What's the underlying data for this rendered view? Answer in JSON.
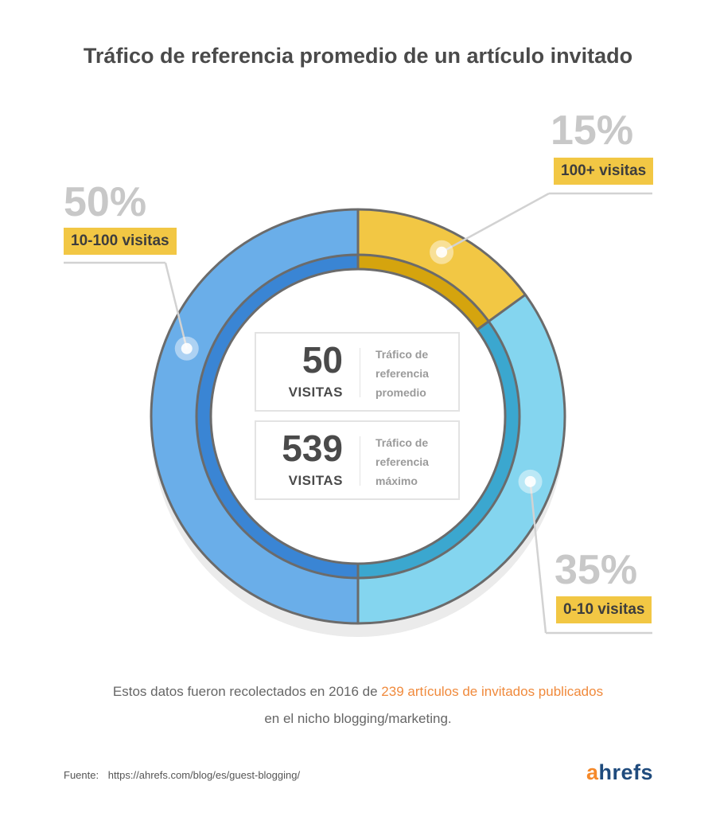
{
  "chart_data": {
    "type": "pie",
    "title": "Tráfico de referencia promedio de un artículo invitado",
    "slices": [
      {
        "label": "10-100 visitas",
        "value": 50,
        "pct_label": "50%",
        "color": "#6aaee9",
        "inner_color": "#3a85d4"
      },
      {
        "label": "100+ visitas",
        "value": 15,
        "pct_label": "15%",
        "color": "#f2c744",
        "inner_color": "#d5a40e"
      },
      {
        "label": "0-10 visitas",
        "value": 35,
        "pct_label": "35%",
        "color": "#84d5ef",
        "inner_color": "#3ba7cf"
      }
    ]
  },
  "stats": [
    {
      "number": "50",
      "unit": "VISITAS",
      "desc": [
        "Tráfico de",
        "referencia",
        "promedio"
      ]
    },
    {
      "number": "539",
      "unit": "VISITAS",
      "desc": [
        "Tráfico de",
        "referencia",
        "máximo"
      ]
    }
  ],
  "footnote": {
    "before": "Estos datos fueron recolectados en 2016 de ",
    "highlight": "239 artículos de invitados publicados",
    "line2": "en el nicho blogging/marketing."
  },
  "source": {
    "label": "Fuente:",
    "url": "https://ahrefs.com/blog/es/guest-blogging/"
  },
  "brand": {
    "first": "a",
    "rest": "hrefs"
  },
  "colors": {
    "accent_yellow": "#f2c744",
    "highlight_orange": "#f08a3c"
  }
}
